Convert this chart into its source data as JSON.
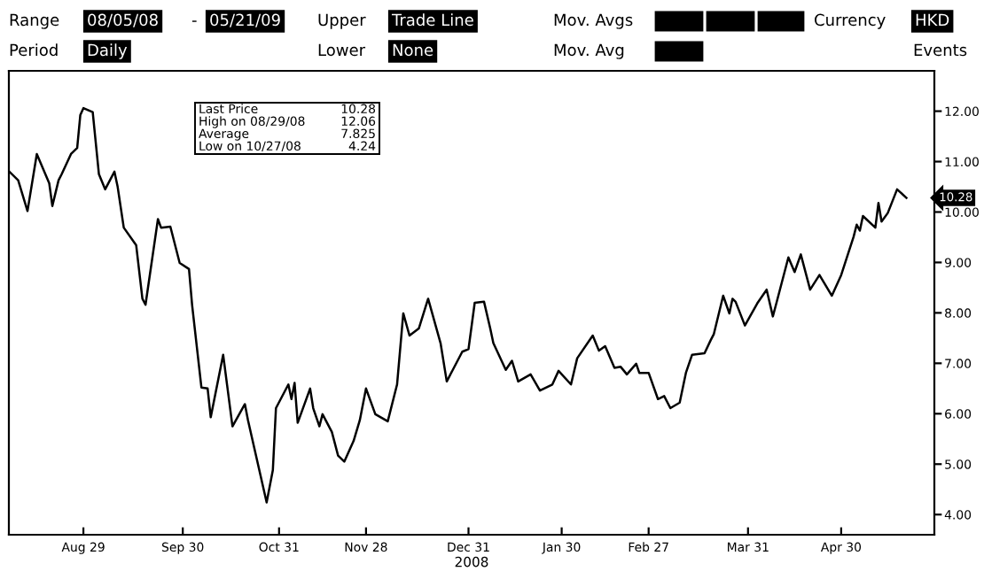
{
  "chart_data": {
    "type": "line",
    "xlabel": "2008",
    "x": [
      "2008-08-05",
      "2008-08-08",
      "2008-08-11",
      "2008-08-14",
      "2008-08-18",
      "2008-08-19",
      "2008-08-21",
      "2008-08-22",
      "2008-08-25",
      "2008-08-27",
      "2008-08-28",
      "2008-08-29",
      "2008-09-01",
      "2008-09-03",
      "2008-09-05",
      "2008-09-08",
      "2008-09-09",
      "2008-09-11",
      "2008-09-15",
      "2008-09-17",
      "2008-09-18",
      "2008-09-22",
      "2008-09-23",
      "2008-09-26",
      "2008-09-29",
      "2008-10-02",
      "2008-10-03",
      "2008-10-06",
      "2008-10-08",
      "2008-10-09",
      "2008-10-13",
      "2008-10-16",
      "2008-10-20",
      "2008-10-21",
      "2008-10-27",
      "2008-10-29",
      "2008-10-30",
      "2008-11-03",
      "2008-11-04",
      "2008-11-05",
      "2008-11-06",
      "2008-11-10",
      "2008-11-11",
      "2008-11-13",
      "2008-11-14",
      "2008-11-17",
      "2008-11-19",
      "2008-11-21",
      "2008-11-24",
      "2008-11-26",
      "2008-11-28",
      "2008-12-01",
      "2008-12-05",
      "2008-12-08",
      "2008-12-10",
      "2008-12-12",
      "2008-12-15",
      "2008-12-18",
      "2008-12-22",
      "2008-12-24",
      "2008-12-29",
      "2008-12-31",
      "2009-01-02",
      "2009-01-05",
      "2009-01-07",
      "2009-01-08",
      "2009-01-12",
      "2009-01-14",
      "2009-01-16",
      "2009-01-20",
      "2009-01-23",
      "2009-01-27",
      "2009-01-29",
      "2009-02-02",
      "2009-02-04",
      "2009-02-09",
      "2009-02-11",
      "2009-02-13",
      "2009-02-16",
      "2009-02-18",
      "2009-02-20",
      "2009-02-23",
      "2009-02-24",
      "2009-02-27",
      "2009-03-02",
      "2009-03-04",
      "2009-03-06",
      "2009-03-09",
      "2009-03-11",
      "2009-03-13",
      "2009-03-17",
      "2009-03-19",
      "2009-03-20",
      "2009-03-23",
      "2009-03-25",
      "2009-03-26",
      "2009-03-27",
      "2009-03-30",
      "2009-04-03",
      "2009-04-06",
      "2009-04-08",
      "2009-04-09",
      "2009-04-13",
      "2009-04-15",
      "2009-04-17",
      "2009-04-20",
      "2009-04-23",
      "2009-04-27",
      "2009-04-30",
      "2009-05-04",
      "2009-05-05",
      "2009-05-06",
      "2009-05-07",
      "2009-05-11",
      "2009-05-12",
      "2009-05-13",
      "2009-05-15",
      "2009-05-18",
      "2009-05-21"
    ],
    "series": [
      {
        "color": "#000000",
        "values": [
          10.81,
          10.63,
          10.02,
          11.15,
          10.57,
          10.12,
          10.63,
          10.75,
          11.15,
          11.27,
          11.92,
          12.06,
          11.98,
          10.75,
          10.45,
          10.8,
          10.51,
          9.69,
          9.34,
          8.28,
          8.16,
          9.86,
          9.69,
          9.71,
          8.99,
          8.87,
          8.16,
          6.52,
          6.5,
          5.93,
          7.17,
          5.75,
          6.19,
          5.87,
          4.24,
          4.88,
          6.11,
          6.58,
          6.29,
          6.61,
          5.82,
          6.5,
          6.11,
          5.75,
          5.99,
          5.64,
          5.17,
          5.05,
          5.46,
          5.87,
          6.5,
          5.99,
          5.85,
          6.58,
          7.99,
          7.55,
          7.69,
          8.28,
          7.4,
          6.64,
          7.23,
          7.28,
          8.2,
          8.22,
          7.69,
          7.4,
          6.87,
          7.05,
          6.64,
          6.78,
          6.46,
          6.58,
          6.85,
          6.58,
          7.1,
          7.55,
          7.25,
          7.34,
          6.91,
          6.93,
          6.78,
          6.99,
          6.81,
          6.81,
          6.29,
          6.35,
          6.11,
          6.22,
          6.81,
          7.17,
          7.2,
          7.46,
          7.58,
          8.34,
          7.99,
          8.28,
          8.22,
          7.75,
          8.19,
          8.46,
          7.93,
          8.16,
          9.1,
          8.81,
          9.16,
          8.46,
          8.75,
          8.34,
          8.75,
          9.51,
          9.75,
          9.63,
          9.92,
          9.69,
          10.18,
          9.81,
          9.98,
          10.45,
          10.28
        ]
      }
    ],
    "xlim": [
      "2008-08-05",
      "2009-05-30"
    ],
    "xticks": [
      {
        "value": "2008-08-29",
        "label": "Aug 29"
      },
      {
        "value": "2008-09-30",
        "label": "Sep 30"
      },
      {
        "value": "2008-10-31",
        "label": "Oct 31"
      },
      {
        "value": "2008-11-28",
        "label": "Nov 28"
      },
      {
        "value": "2008-12-31",
        "label": "Dec 31"
      },
      {
        "value": "2009-01-30",
        "label": "Jan 30"
      },
      {
        "value": "2009-02-27",
        "label": "Feb 27"
      },
      {
        "value": "2009-03-31",
        "label": "Mar 31"
      },
      {
        "value": "2009-04-30",
        "label": "Apr 30"
      }
    ],
    "ylim": [
      3.6,
      12.8
    ],
    "yticks": [
      {
        "value": 4,
        "label": "4.00"
      },
      {
        "value": 5,
        "label": "5.00"
      },
      {
        "value": 6,
        "label": "6.00"
      },
      {
        "value": 7,
        "label": "7.00"
      },
      {
        "value": 8,
        "label": "8.00"
      },
      {
        "value": 9,
        "label": "9.00"
      },
      {
        "value": 10,
        "label": "10.00"
      },
      {
        "value": 11,
        "label": "11.00"
      },
      {
        "value": 12,
        "label": "12.00"
      }
    ],
    "grid": false,
    "legend": false,
    "marker": "none",
    "line_style": "solid",
    "annotations": [
      "Range",
      "08/05/08",
      "-",
      "05/21/09",
      "Upper",
      "Trade Line",
      "Mov. Avgs",
      "Currency",
      "HKD",
      "Period",
      "Daily",
      "Lower",
      "None",
      "Mov. Avg",
      "Events",
      "Last Price 10.28",
      "High on 08/29/08 12.06",
      "Average 7.825",
      "Low on 10/27/08 4.24",
      {
        "text": "10.28",
        "x": "2009-05-21",
        "y": 10.28
      }
    ]
  }
}
